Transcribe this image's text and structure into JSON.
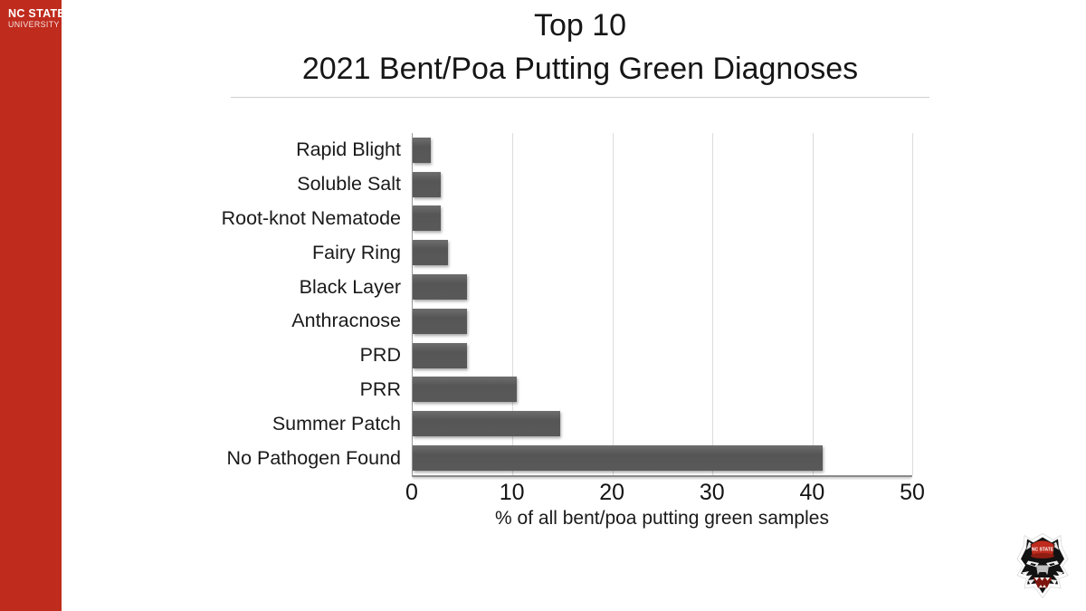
{
  "sidebar": {
    "background_color": "#BF2B1D",
    "brand_line1": "NC STATE",
    "brand_line2": "UNIVERSITY"
  },
  "header": {
    "title_line1": "Top 10",
    "title_line2": "2021 Bent/Poa Putting Green Diagnoses"
  },
  "chart_data": {
    "type": "bar",
    "orientation": "horizontal",
    "title": "Top 10 2021 Bent/Poa Putting Green Diagnoses",
    "categories": [
      "Rapid Blight",
      "Soluble Salt",
      "Root-knot Nematode",
      "Fairy Ring",
      "Black Layer",
      "Anthracnose",
      "PRD",
      "PRR",
      "Summer Patch",
      "No Pathogen Found"
    ],
    "values": [
      1.8,
      2.8,
      2.8,
      3.5,
      5.4,
      5.4,
      5.4,
      10.4,
      14.8,
      41
    ],
    "xlabel": "% of all bent/poa putting green samples",
    "x_ticks": [
      0,
      10,
      20,
      30,
      40,
      50
    ],
    "xlim": [
      0,
      50
    ],
    "grid": true,
    "legend": false,
    "bar_color": "#595959",
    "gridline_color": "#dcdcdc",
    "axis_color": "#8a8a8a"
  },
  "mascot": {
    "cap_text": "NC STATE"
  }
}
